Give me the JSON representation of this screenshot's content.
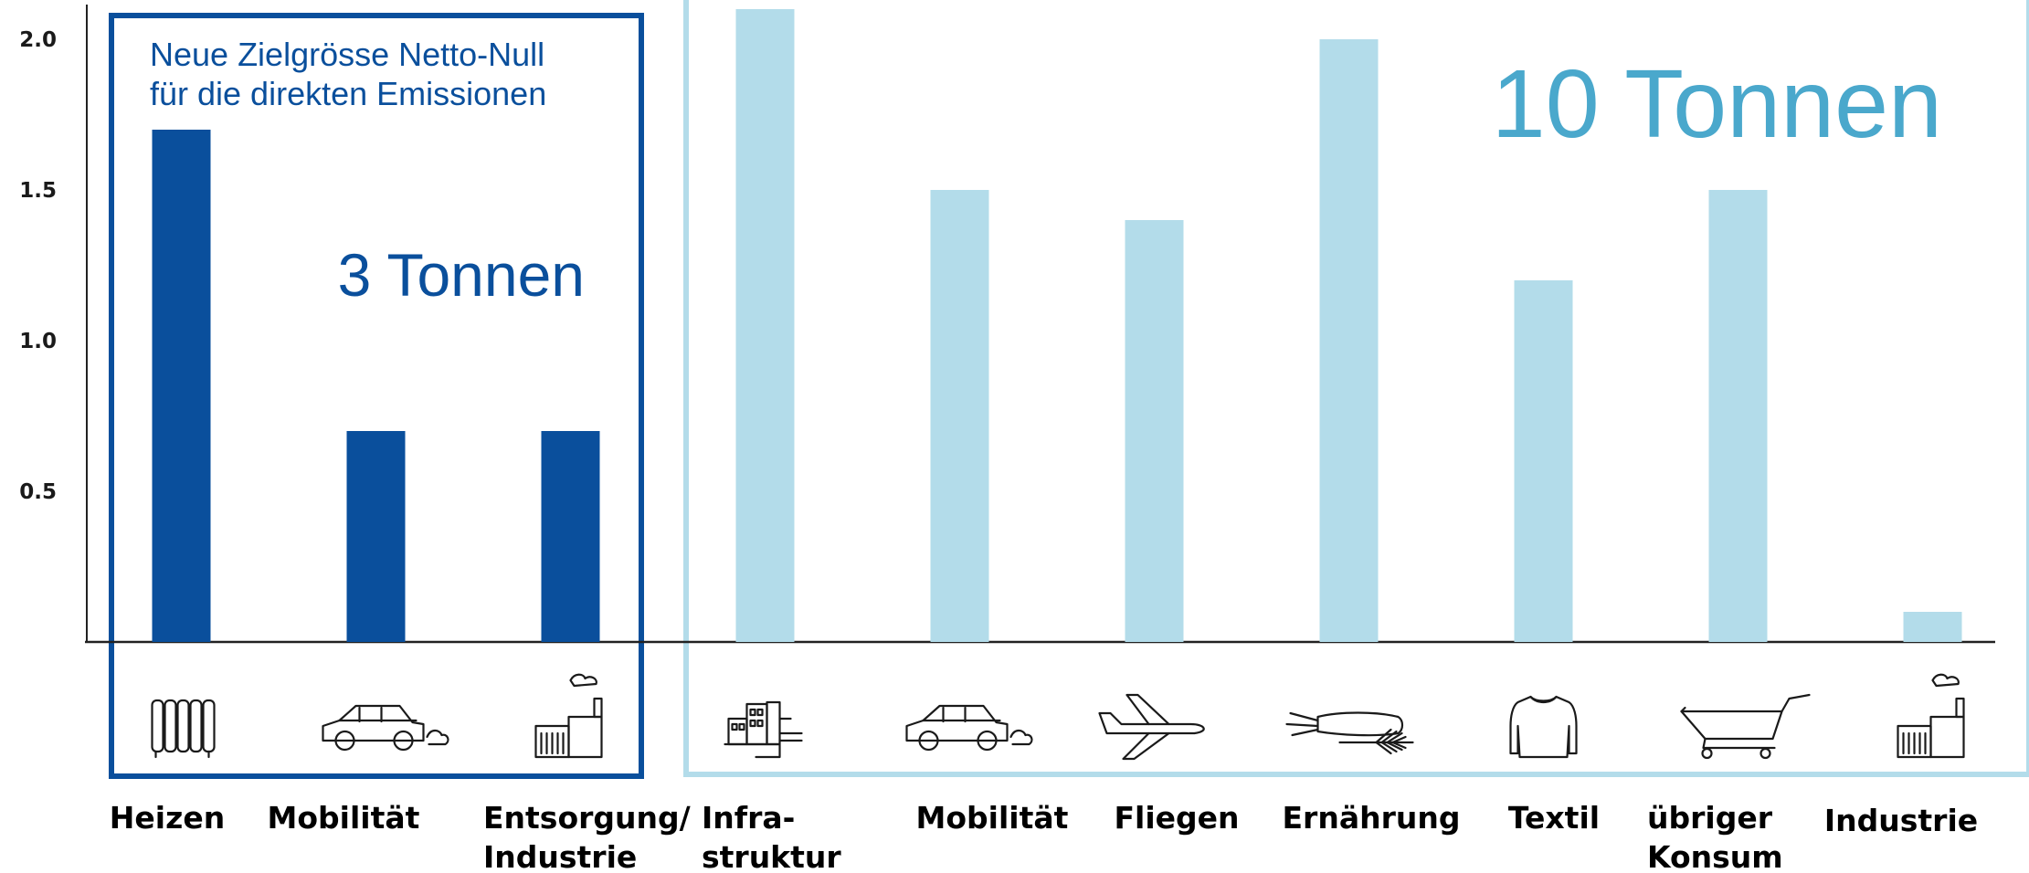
{
  "chart_data": {
    "type": "bar",
    "categories": [
      "Heizen",
      "Mobilität",
      "Entsorgung/\nIndustrie",
      "Infra-\nstruktur",
      "Mobilität",
      "Fliegen",
      "Ernährung",
      "Textil",
      "übriger\nKonsum",
      "Industrie"
    ],
    "values": [
      1.7,
      0.7,
      0.7,
      2.1,
      1.5,
      1.4,
      2.0,
      1.2,
      1.5,
      0.1
    ],
    "groups": [
      "direct",
      "direct",
      "direct",
      "indirect",
      "indirect",
      "indirect",
      "indirect",
      "indirect",
      "indirect",
      "indirect"
    ],
    "ylim": [
      0,
      2.1
    ],
    "yticks": [
      "0.5",
      "1.0",
      "1.5",
      "2.0"
    ],
    "ytick_values": [
      0.5,
      1.0,
      1.5,
      2.0
    ],
    "grid": false,
    "icons": [
      "radiator-icon",
      "car-icon",
      "factory-icon",
      "buildings-icon",
      "car-icon",
      "airplane-icon",
      "carrot-wheat-icon",
      "sweater-icon",
      "shopping-cart-icon",
      "factory-icon"
    ],
    "colors": {
      "direct": "#0a4f9c",
      "indirect": "#b3dcea",
      "direct_frame": "#0a4f9c",
      "indirect_frame": "#b3dcea"
    }
  },
  "annotations": {
    "direct_note_line1": "Neue Zielgrösse Netto-Null",
    "direct_note_line2": "für die direkten Emissionen",
    "direct_total": "3 Tonnen",
    "indirect_total": "10 Tonnen"
  }
}
